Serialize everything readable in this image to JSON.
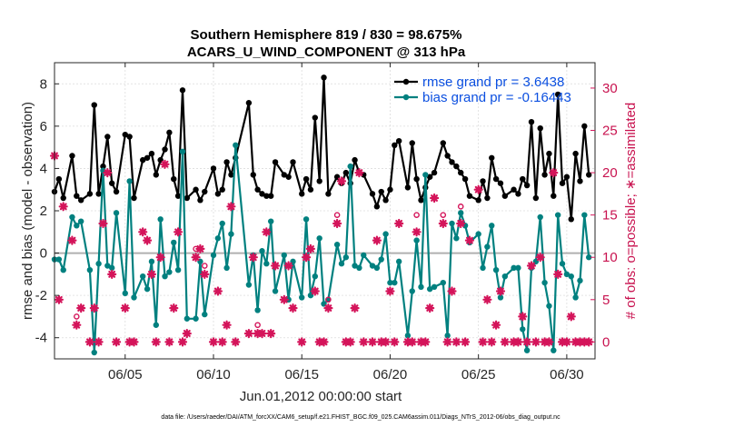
{
  "chart_data": {
    "type": "line",
    "title_line1": "Southern Hemisphere 819 / 830 = 98.675%",
    "title_line2": "ACARS_U_WIND_COMPONENT @ 313 hPa",
    "xlabel": "Jun.01,2012 00:00:00 start",
    "ylabel": "rmse and bias (model - observation)",
    "ylabel_right": "# of obs: o=possible; ∗=assimilated",
    "xlim": [
      1,
      31.6
    ],
    "ylim": [
      -5,
      9
    ],
    "ylim_right": [
      -2,
      33
    ],
    "x_ticks": [
      5,
      10,
      15,
      20,
      25,
      30
    ],
    "x_tick_labels": [
      "06/05",
      "06/10",
      "06/15",
      "06/20",
      "06/25",
      "06/30"
    ],
    "y_ticks": [
      -4,
      -2,
      0,
      2,
      4,
      6,
      8
    ],
    "y_tick_labels": [
      "-4",
      "-2",
      "0",
      "2",
      "4",
      "6",
      "8"
    ],
    "y_right_ticks": [
      0,
      5,
      10,
      15,
      20,
      25,
      30
    ],
    "y_right_tick_labels": [
      "0",
      "5",
      "10",
      "15",
      "20",
      "25",
      "30"
    ],
    "footer": "data file: /Users/raeder/DAI/ATM_forcXX/CAM6_setup/f.e21.FHIST_BGC.f09_025.CAM6assim.011/Diags_NTrS_2012-06/obs_diag_output.nc",
    "colors": {
      "rmse": "#000000",
      "bias": "#00807f",
      "obs": "#d4145a",
      "zero": "#b0b0b0"
    },
    "legend": [
      {
        "name": "rmse grand pr = 3.6438",
        "series": "rmse"
      },
      {
        "name": "bias grand pr = -0.16443",
        "series": "bias"
      }
    ],
    "series": [
      {
        "name": "rmse",
        "x": [
          1.0,
          1.25,
          1.5,
          2.0,
          2.25,
          2.5,
          3.0,
          3.25,
          3.5,
          3.75,
          4.0,
          4.25,
          4.5,
          5.0,
          5.25,
          5.5,
          6.0,
          6.25,
          6.5,
          6.75,
          7.0,
          7.25,
          7.5,
          7.75,
          8.0,
          8.25,
          8.5,
          9.0,
          9.25,
          9.5,
          10.0,
          10.25,
          10.5,
          10.75,
          11.0,
          11.25,
          12.0,
          12.25,
          12.5,
          12.75,
          13.0,
          13.25,
          13.5,
          14.0,
          14.25,
          14.5,
          15.0,
          15.25,
          15.5,
          15.75,
          16.0,
          16.25,
          16.5,
          17.0,
          17.25,
          17.5,
          17.75,
          18.0,
          18.25,
          18.5,
          19.0,
          19.25,
          19.5,
          19.75,
          20.0,
          20.25,
          20.5,
          21.0,
          21.25,
          21.5,
          21.75,
          22.0,
          22.25,
          22.5,
          23.0,
          23.25,
          23.5,
          23.75,
          24.0,
          24.25,
          24.5,
          25.0,
          25.25,
          25.5,
          25.75,
          26.0,
          26.25,
          26.5,
          27.0,
          27.25,
          27.5,
          27.75,
          28.0,
          28.25,
          28.5,
          28.75,
          29.0,
          29.25,
          29.5,
          29.75,
          30.0,
          30.25,
          30.5,
          30.75,
          31.0,
          31.25
        ],
        "y": [
          2.9,
          3.5,
          2.6,
          4.6,
          2.7,
          2.5,
          2.8,
          7.0,
          2.8,
          4.1,
          5.5,
          3.3,
          2.9,
          5.6,
          5.5,
          2.6,
          4.4,
          4.5,
          4.7,
          3.7,
          4.4,
          4.9,
          5.7,
          3.5,
          2.7,
          7.7,
          2.6,
          3.0,
          2.5,
          2.9,
          4.0,
          2.8,
          3.0,
          4.3,
          3.7,
          4.5,
          7.1,
          3.7,
          3.0,
          2.8,
          2.7,
          2.7,
          4.3,
          3.7,
          3.6,
          4.3,
          2.8,
          3.5,
          3.0,
          6.4,
          3.4,
          8.3,
          2.8,
          3.6,
          3.3,
          3.8,
          3.3,
          4.4,
          3.8,
          3.7,
          2.8,
          2.2,
          2.9,
          2.5,
          3.0,
          5.1,
          5.3,
          3.1,
          5.2,
          3.5,
          2.5,
          3.1,
          3.6,
          3.8,
          5.2,
          4.6,
          4.3,
          4.1,
          3.8,
          3.5,
          2.7,
          2.5,
          3.4,
          2.6,
          4.5,
          3.5,
          3.3,
          2.7,
          3.0,
          2.8,
          3.5,
          3.2,
          6.2,
          2.6,
          5.9,
          3.7,
          4.7,
          2.7,
          7.5,
          3.3,
          3.6,
          1.6,
          4.7,
          3.4,
          6.0,
          3.7
        ]
      },
      {
        "name": "bias",
        "x": [
          1.0,
          1.25,
          1.5,
          2.0,
          2.25,
          2.5,
          3.0,
          3.25,
          3.5,
          3.75,
          4.0,
          4.25,
          4.5,
          5.0,
          5.25,
          5.5,
          6.0,
          6.25,
          6.5,
          6.75,
          7.0,
          7.25,
          7.5,
          7.75,
          8.0,
          8.25,
          8.5,
          9.0,
          9.25,
          9.5,
          10.0,
          10.25,
          10.5,
          10.75,
          11.0,
          11.25,
          12.0,
          12.25,
          12.5,
          12.75,
          13.0,
          13.25,
          13.5,
          14.0,
          14.25,
          14.5,
          15.0,
          15.25,
          15.5,
          15.75,
          16.0,
          16.25,
          16.5,
          17.0,
          17.25,
          17.5,
          17.75,
          18.0,
          18.25,
          18.5,
          19.0,
          19.25,
          19.5,
          19.75,
          20.0,
          20.25,
          20.5,
          21.0,
          21.25,
          21.5,
          21.75,
          22.0,
          22.25,
          22.5,
          23.0,
          23.25,
          23.5,
          23.75,
          24.0,
          24.25,
          24.5,
          25.0,
          25.25,
          25.5,
          25.75,
          26.0,
          26.25,
          26.5,
          27.0,
          27.25,
          27.5,
          27.75,
          28.0,
          28.25,
          28.5,
          28.75,
          29.0,
          29.25,
          29.5,
          29.75,
          30.0,
          30.25,
          30.5,
          30.75,
          31.0,
          31.25
        ],
        "y": [
          -0.3,
          -0.3,
          -0.8,
          1.7,
          1.3,
          1.5,
          -0.8,
          -4.7,
          -0.5,
          3.9,
          -0.6,
          -0.7,
          1.9,
          -1.9,
          3.4,
          -2.1,
          -1.1,
          -1.7,
          -0.4,
          -3.4,
          1.6,
          -1.1,
          -0.9,
          0.5,
          -0.8,
          4.8,
          -3.1,
          -3.1,
          -0.4,
          -2.9,
          -0.1,
          0.7,
          1.4,
          -0.7,
          0.9,
          5.1,
          -1.5,
          -0.1,
          -2.7,
          0.1,
          -0.5,
          1.5,
          -1.8,
          -0.1,
          -2.2,
          -0.4,
          -2.1,
          1.6,
          -2.0,
          -1.1,
          0.7,
          -2.4,
          -2.2,
          0.4,
          -0.5,
          -0.2,
          4.1,
          -0.6,
          -0.7,
          -0.1,
          -0.6,
          -0.7,
          -0.3,
          0.9,
          -1.4,
          -1.4,
          -0.4,
          -3.9,
          -1.8,
          0.6,
          -1.6,
          3.7,
          -1.7,
          -1.6,
          -1.4,
          -3.9,
          1.4,
          0.7,
          1.9,
          1.3,
          0.5,
          0.9,
          -0.7,
          0.3,
          1.3,
          -0.8,
          -2.1,
          -1.1,
          -0.7,
          -0.7,
          -3.6,
          -4.6,
          -0.7,
          -0.4,
          1.7,
          -1.4,
          -2.5,
          -4.6,
          1.8,
          -0.5,
          -1.0,
          -1.1,
          -2.1,
          -1.3,
          1.8,
          -0.2
        ]
      }
    ],
    "obs_assimilated": {
      "x": [
        1.0,
        1.25,
        1.5,
        2.0,
        2.25,
        2.5,
        3.0,
        3.25,
        3.5,
        3.75,
        4.0,
        4.25,
        4.5,
        5.0,
        5.25,
        5.5,
        6.0,
        6.25,
        6.5,
        6.75,
        7.0,
        7.25,
        7.5,
        7.75,
        8.0,
        8.25,
        8.5,
        9.0,
        9.25,
        9.5,
        10.0,
        10.25,
        10.5,
        10.75,
        11.0,
        11.25,
        12.0,
        12.25,
        12.5,
        12.75,
        13.0,
        13.25,
        13.5,
        14.0,
        14.25,
        14.5,
        15.0,
        15.25,
        15.5,
        15.75,
        16.0,
        16.25,
        16.5,
        17.0,
        17.25,
        17.5,
        17.75,
        18.0,
        18.25,
        18.5,
        19.0,
        19.25,
        19.5,
        19.75,
        20.0,
        20.25,
        20.5,
        21.0,
        21.25,
        21.5,
        21.75,
        22.0,
        22.25,
        22.5,
        23.0,
        23.25,
        23.5,
        23.75,
        24.0,
        24.25,
        24.5,
        25.0,
        25.25,
        25.5,
        25.75,
        26.0,
        26.25,
        26.5,
        27.0,
        27.25,
        27.5,
        27.75,
        28.0,
        28.25,
        28.5,
        28.75,
        29.0,
        29.25,
        29.5,
        29.75,
        30.0,
        30.25,
        30.5,
        30.75,
        31.0,
        31.25
      ],
      "y": [
        22,
        5,
        16,
        12,
        2,
        4,
        0,
        4,
        0,
        14,
        20,
        8,
        0,
        4,
        0,
        0,
        13,
        12,
        8,
        0,
        10,
        21,
        0,
        4,
        13,
        0,
        1,
        10,
        11,
        8,
        0,
        6,
        0,
        2,
        16,
        0,
        1,
        10,
        1,
        1,
        13,
        1,
        9,
        5,
        9,
        4,
        0,
        10,
        11,
        6,
        0,
        0,
        4,
        14,
        19,
        0,
        0,
        4,
        20,
        0,
        0,
        12,
        0,
        0,
        6,
        0,
        14,
        0,
        0,
        13,
        0,
        0,
        4,
        17,
        14,
        0,
        6,
        0,
        14,
        0,
        12,
        18,
        0,
        5,
        0,
        2,
        6,
        0,
        0,
        0,
        3,
        0,
        9,
        0,
        10,
        0,
        0,
        20,
        8,
        0,
        0,
        3,
        0,
        0,
        0,
        0
      ]
    },
    "obs_possible": {
      "x": [
        1.0,
        1.25,
        1.5,
        2.0,
        2.25,
        2.5,
        3.0,
        3.25,
        3.5,
        3.75,
        4.0,
        4.25,
        4.5,
        5.0,
        5.25,
        5.5,
        6.0,
        6.25,
        6.5,
        6.75,
        7.0,
        7.25,
        7.5,
        7.75,
        8.0,
        8.25,
        8.5,
        9.0,
        9.25,
        9.5,
        10.0,
        10.25,
        10.5,
        10.75,
        11.0,
        11.25,
        12.0,
        12.25,
        12.5,
        12.75,
        13.0,
        13.25,
        13.5,
        14.0,
        14.25,
        14.5,
        15.0,
        15.25,
        15.5,
        15.75,
        16.0,
        16.25,
        16.5,
        17.0,
        17.25,
        17.5,
        17.75,
        18.0,
        18.25,
        18.5,
        19.0,
        19.25,
        19.5,
        19.75,
        20.0,
        20.25,
        20.5,
        21.0,
        21.25,
        21.5,
        21.75,
        22.0,
        22.25,
        22.5,
        23.0,
        23.25,
        23.5,
        23.75,
        24.0,
        24.25,
        24.5,
        25.0,
        25.25,
        25.5,
        25.75,
        26.0,
        26.25,
        26.5,
        27.0,
        27.25,
        27.5,
        27.75,
        28.0,
        28.25,
        28.5,
        28.75,
        29.0,
        29.25,
        29.5,
        29.75,
        30.0,
        30.25,
        30.5,
        30.75,
        31.0,
        31.25
      ],
      "y": [
        22,
        5,
        16,
        12,
        3,
        4,
        0,
        4,
        0,
        14,
        20,
        8,
        0,
        4,
        0,
        0,
        13,
        12,
        8,
        0,
        10,
        21,
        0,
        4,
        13,
        0,
        1,
        11,
        11,
        9,
        0,
        6,
        0,
        2,
        16,
        0,
        1,
        10,
        2,
        1,
        13,
        1,
        9,
        5,
        9,
        4,
        0,
        10,
        11,
        6,
        0,
        0,
        5,
        15,
        19,
        0,
        0,
        4,
        20,
        0,
        0,
        12,
        0,
        0,
        6,
        0,
        14,
        0,
        0,
        15,
        0,
        0,
        4,
        17,
        15,
        0,
        6,
        0,
        16,
        0,
        12,
        18,
        0,
        5,
        0,
        2,
        6,
        0,
        0,
        0,
        3,
        0,
        9,
        0,
        10,
        0,
        0,
        20,
        8,
        0,
        0,
        3,
        0,
        0,
        0,
        0
      ]
    }
  }
}
